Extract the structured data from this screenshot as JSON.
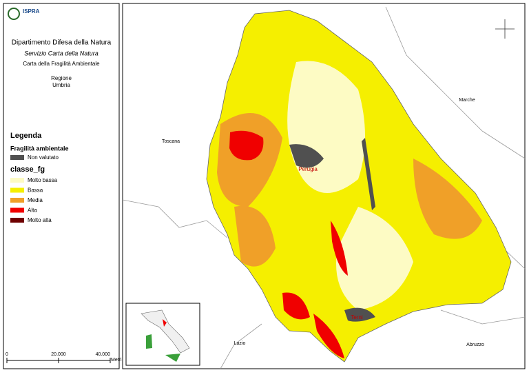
{
  "logo": "ISPRA",
  "header": {
    "department": "Dipartimento Difesa della Natura",
    "service": "Servizio Carta della Natura",
    "map_title": "Carta della Fragilità Ambientale",
    "region_label": "Regione",
    "region": "Umbria"
  },
  "legend": {
    "title": "Legenda",
    "group": "Fragilità ambientale",
    "not_evaluated": {
      "label": "Non valutato",
      "color": "#505050"
    },
    "field": "classe_fg",
    "classes": [
      {
        "label": "Molto bassa",
        "color": "#fdfbc4"
      },
      {
        "label": "Bassa",
        "color": "#f5ef00"
      },
      {
        "label": "Media",
        "color": "#f0a028"
      },
      {
        "label": "Alta",
        "color": "#f00000"
      },
      {
        "label": "Molto alta",
        "color": "#6e0000"
      }
    ]
  },
  "scale_bar": {
    "ticks": [
      0,
      {
        "value": 20000,
        "label": "20.000"
      },
      {
        "value": 40000,
        "label": "40.000"
      }
    ],
    "unit": "Metri"
  },
  "map_labels": {
    "toscana": "Toscana",
    "marche": "Marche",
    "lazio": "Lazio",
    "abruzzo": "Abruzzo",
    "perugia": "Perugia",
    "terni": "Terni"
  }
}
